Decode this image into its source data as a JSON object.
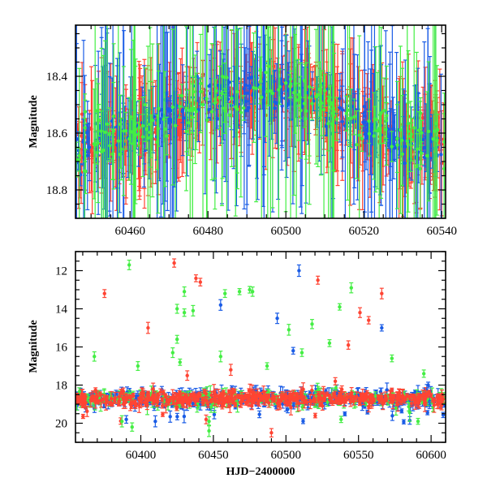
{
  "chart_data": [
    {
      "type": "scatter",
      "panel": "top",
      "title": "",
      "xlabel": "",
      "ylabel": "Magnitude",
      "xlim": [
        60446,
        60541
      ],
      "ylim": [
        18.9,
        18.22
      ],
      "y_inverted": true,
      "x_ticks": [
        60460,
        60480,
        60500,
        60520,
        60540
      ],
      "x_tick_labels": [
        "60460",
        "60480",
        "60500",
        "60520",
        "60540"
      ],
      "y_ticks": [
        18.4,
        18.6,
        18.8
      ],
      "y_tick_labels": [
        "18.4",
        "18.6",
        "18.8"
      ],
      "error_bars": true,
      "grid": false,
      "legend": "none",
      "baseline_segments": [
        {
          "x": [
            60446,
            60452
          ],
          "y": 18.64,
          "scatter": 0.05
        },
        {
          "x": [
            60452,
            60460
          ],
          "y": 18.61,
          "scatter": 0.04
        },
        {
          "x": [
            60460,
            60468
          ],
          "y": 18.58,
          "scatter": 0.04
        },
        {
          "x": [
            60468,
            60476
          ],
          "y": 18.53,
          "scatter": 0.04
        },
        {
          "x": [
            60476,
            60482
          ],
          "y": 18.49,
          "scatter": 0.04
        },
        {
          "x": [
            60482,
            60490
          ],
          "y": 18.47,
          "scatter": 0.04
        },
        {
          "x": [
            60490,
            60500
          ],
          "y": 18.45,
          "scatter": 0.035
        },
        {
          "x": [
            60500,
            60510
          ],
          "y": 18.47,
          "scatter": 0.035
        },
        {
          "x": [
            60510,
            60518
          ],
          "y": 18.53,
          "scatter": 0.035
        },
        {
          "x": [
            60518,
            60526
          ],
          "y": 18.58,
          "scatter": 0.035
        },
        {
          "x": [
            60526,
            60541
          ],
          "y": 18.63,
          "scatter": 0.04
        }
      ],
      "series": [
        {
          "color": "#ff4433",
          "points": 520,
          "err_range": [
            0.02,
            0.25
          ]
        },
        {
          "color": "#1a5ce6",
          "points": 320,
          "err_range": [
            0.03,
            0.45
          ]
        },
        {
          "color": "#44ee44",
          "points": 190,
          "err_range": [
            0.04,
            0.55
          ]
        }
      ]
    },
    {
      "type": "scatter",
      "panel": "bottom",
      "title": "",
      "xlabel": "HJD−2400000",
      "ylabel": "Magnitude",
      "xlim": [
        60355,
        60610
      ],
      "ylim": [
        21,
        11
      ],
      "y_inverted": true,
      "x_ticks": [
        60400,
        60450,
        60500,
        60550,
        60600
      ],
      "x_tick_labels": [
        "60400",
        "60450",
        "60500",
        "60550",
        "60600"
      ],
      "y_ticks": [
        12,
        14,
        16,
        18,
        20
      ],
      "y_tick_labels": [
        "12",
        "14",
        "16",
        "18",
        "20"
      ],
      "error_bars": true,
      "grid": false,
      "legend": "none",
      "baseline": 18.7,
      "outliers": [
        {
          "color": "#ff4433",
          "x": 60375,
          "y": 13.2
        },
        {
          "color": "#ff4433",
          "x": 60405,
          "y": 15.0
        },
        {
          "color": "#ff4433",
          "x": 60423,
          "y": 11.6
        },
        {
          "color": "#ff4433",
          "x": 60438,
          "y": 12.4
        },
        {
          "color": "#ff4433",
          "x": 60441,
          "y": 12.6
        },
        {
          "color": "#ff4433",
          "x": 60522,
          "y": 12.5
        },
        {
          "color": "#ff4433",
          "x": 60543,
          "y": 15.9
        },
        {
          "color": "#ff4433",
          "x": 60551,
          "y": 14.2
        },
        {
          "color": "#ff4433",
          "x": 60557,
          "y": 14.6
        },
        {
          "color": "#ff4433",
          "x": 60566,
          "y": 13.2
        },
        {
          "color": "#ff4433",
          "x": 60432,
          "y": 17.5
        },
        {
          "color": "#ff4433",
          "x": 60462,
          "y": 17.2
        },
        {
          "color": "#ff4433",
          "x": 60490,
          "y": 20.5
        },
        {
          "color": "#ff4433",
          "x": 60445,
          "y": 19.8
        },
        {
          "color": "#ff4433",
          "x": 60534,
          "y": 17.8
        },
        {
          "color": "#1a5ce6",
          "x": 60509,
          "y": 12.0
        },
        {
          "color": "#1a5ce6",
          "x": 60455,
          "y": 13.8
        },
        {
          "color": "#1a5ce6",
          "x": 60494,
          "y": 14.5
        },
        {
          "color": "#1a5ce6",
          "x": 60566,
          "y": 15.0
        },
        {
          "color": "#1a5ce6",
          "x": 60505,
          "y": 16.2
        },
        {
          "color": "#1a5ce6",
          "x": 60390,
          "y": 19.8
        },
        {
          "color": "#1a5ce6",
          "x": 60410,
          "y": 19.9
        },
        {
          "color": "#1a5ce6",
          "x": 60598,
          "y": 18.0
        },
        {
          "color": "#44ee44",
          "x": 60392,
          "y": 11.7
        },
        {
          "color": "#44ee44",
          "x": 60430,
          "y": 13.1
        },
        {
          "color": "#44ee44",
          "x": 60425,
          "y": 14.0
        },
        {
          "color": "#44ee44",
          "x": 60430,
          "y": 14.2
        },
        {
          "color": "#44ee44",
          "x": 60436,
          "y": 14.1
        },
        {
          "color": "#44ee44",
          "x": 60458,
          "y": 13.2
        },
        {
          "color": "#44ee44",
          "x": 60468,
          "y": 13.1
        },
        {
          "color": "#44ee44",
          "x": 60475,
          "y": 13.0
        },
        {
          "color": "#44ee44",
          "x": 60477,
          "y": 13.1
        },
        {
          "color": "#44ee44",
          "x": 60518,
          "y": 14.8
        },
        {
          "color": "#44ee44",
          "x": 60537,
          "y": 13.9
        },
        {
          "color": "#44ee44",
          "x": 60545,
          "y": 12.9
        },
        {
          "color": "#44ee44",
          "x": 60368,
          "y": 16.5
        },
        {
          "color": "#44ee44",
          "x": 60398,
          "y": 17.0
        },
        {
          "color": "#44ee44",
          "x": 60422,
          "y": 16.3
        },
        {
          "color": "#44ee44",
          "x": 60425,
          "y": 15.6
        },
        {
          "color": "#44ee44",
          "x": 60427,
          "y": 16.8
        },
        {
          "color": "#44ee44",
          "x": 60455,
          "y": 16.5
        },
        {
          "color": "#44ee44",
          "x": 60487,
          "y": 17.0
        },
        {
          "color": "#44ee44",
          "x": 60502,
          "y": 15.1
        },
        {
          "color": "#44ee44",
          "x": 60511,
          "y": 16.3
        },
        {
          "color": "#44ee44",
          "x": 60530,
          "y": 15.8
        },
        {
          "color": "#44ee44",
          "x": 60573,
          "y": 16.6
        },
        {
          "color": "#44ee44",
          "x": 60595,
          "y": 17.4
        },
        {
          "color": "#44ee44",
          "x": 60387,
          "y": 19.9
        },
        {
          "color": "#44ee44",
          "x": 60394,
          "y": 20.2
        },
        {
          "color": "#44ee44",
          "x": 60447,
          "y": 20.4
        },
        {
          "color": "#44ee44",
          "x": 60447,
          "y": 19.9
        },
        {
          "color": "#44ee44",
          "x": 60538,
          "y": 19.8
        },
        {
          "color": "#44ee44",
          "x": 60591,
          "y": 19.9
        }
      ],
      "series": [
        {
          "color": "#1a5ce6",
          "points": 460,
          "err_range": [
            0.1,
            0.4
          ]
        },
        {
          "color": "#44ee44",
          "points": 170,
          "err_range": [
            0.15,
            0.5
          ]
        },
        {
          "color": "#ff4433",
          "points": 440,
          "err_range": [
            0.1,
            0.4
          ]
        }
      ]
    }
  ]
}
